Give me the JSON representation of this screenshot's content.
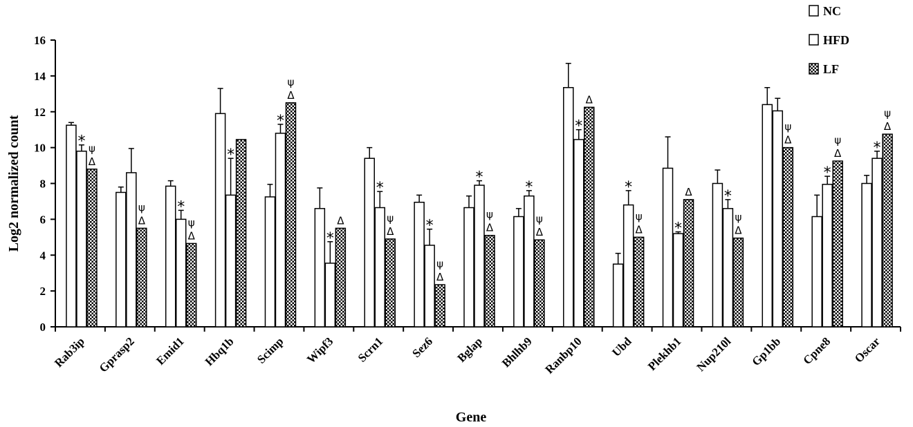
{
  "chart_data": {
    "type": "bar",
    "xlabel": "Gene",
    "ylabel": "Log2 normalized count",
    "ylim": [
      0,
      16
    ],
    "yticks": [
      "0",
      "2",
      "4",
      "6",
      "8",
      "10",
      "12",
      "14",
      "16"
    ],
    "legend_position": "top-right",
    "grid": false,
    "categories": [
      "Rab3ip",
      "Gprasp2",
      "Emid1",
      "Hbq1b",
      "Scimp",
      "Wipf3",
      "Scrn1",
      "Sez6",
      "Bglap",
      "Bhlhb9",
      "Ranbp10",
      "Ubd",
      "Plekhb1",
      "Nup210l",
      "Gp1bb",
      "Cpne8",
      "Oscar"
    ],
    "series": [
      {
        "name": "NC",
        "pattern": "white",
        "values": [
          11.25,
          7.5,
          7.85,
          11.9,
          7.25,
          6.6,
          9.4,
          6.95,
          6.65,
          6.15,
          13.35,
          3.5,
          8.85,
          8.0,
          12.4,
          6.15,
          8.0
        ],
        "errors": [
          0.15,
          0.3,
          0.3,
          1.4,
          0.7,
          1.15,
          0.6,
          0.4,
          0.65,
          0.45,
          1.35,
          0.6,
          1.75,
          0.75,
          0.95,
          1.2,
          0.45
        ]
      },
      {
        "name": "HFD",
        "pattern": "white",
        "values": [
          9.8,
          8.6,
          6.0,
          7.35,
          10.8,
          3.55,
          6.65,
          4.55,
          7.9,
          7.3,
          10.45,
          6.8,
          5.2,
          6.6,
          12.05,
          7.95,
          9.4
        ],
        "errors": [
          0.35,
          1.35,
          0.5,
          2.05,
          0.5,
          1.2,
          0.9,
          0.9,
          0.25,
          0.3,
          0.55,
          0.8,
          0.1,
          0.5,
          0.7,
          0.45,
          0.4
        ]
      },
      {
        "name": "LF",
        "pattern": "checkered",
        "values": [
          8.8,
          5.5,
          4.65,
          10.45,
          12.5,
          5.5,
          4.9,
          2.35,
          5.1,
          4.85,
          12.25,
          5.0,
          7.1,
          4.95,
          10.0,
          9.25,
          10.75
        ]
      }
    ],
    "annotations": [
      {
        "category": "Rab3ip",
        "series": "HFD",
        "symbols": [
          "*"
        ]
      },
      {
        "category": "Rab3ip",
        "series": "LF",
        "symbols": [
          "Δ",
          "ψ"
        ]
      },
      {
        "category": "Gprasp2",
        "series": "LF",
        "symbols": [
          "Δ",
          "ψ"
        ]
      },
      {
        "category": "Emid1",
        "series": "HFD",
        "symbols": [
          "*"
        ]
      },
      {
        "category": "Emid1",
        "series": "LF",
        "symbols": [
          "Δ",
          "ψ"
        ]
      },
      {
        "category": "Hbq1b",
        "series": "HFD",
        "symbols": [
          "*"
        ]
      },
      {
        "category": "Scimp",
        "series": "HFD",
        "symbols": [
          "*"
        ]
      },
      {
        "category": "Scimp",
        "series": "LF",
        "symbols": [
          "Δ",
          "ψ"
        ]
      },
      {
        "category": "Wipf3",
        "series": "HFD",
        "symbols": [
          "*"
        ]
      },
      {
        "category": "Wipf3",
        "series": "LF",
        "symbols": [
          "Δ"
        ]
      },
      {
        "category": "Scrn1",
        "series": "HFD",
        "symbols": [
          "*"
        ]
      },
      {
        "category": "Scrn1",
        "series": "LF",
        "symbols": [
          "Δ",
          "ψ"
        ]
      },
      {
        "category": "Sez6",
        "series": "HFD",
        "symbols": [
          "*"
        ]
      },
      {
        "category": "Sez6",
        "series": "LF",
        "symbols": [
          "Δ",
          "ψ"
        ]
      },
      {
        "category": "Bglap",
        "series": "HFD",
        "symbols": [
          "*"
        ]
      },
      {
        "category": "Bglap",
        "series": "LF",
        "symbols": [
          "Δ",
          "ψ"
        ]
      },
      {
        "category": "Bhlhb9",
        "series": "HFD",
        "symbols": [
          "*"
        ]
      },
      {
        "category": "Bhlhb9",
        "series": "LF",
        "symbols": [
          "Δ",
          "ψ"
        ]
      },
      {
        "category": "Ranbp10",
        "series": "HFD",
        "symbols": [
          "*"
        ]
      },
      {
        "category": "Ranbp10",
        "series": "LF",
        "symbols": [
          "Δ"
        ]
      },
      {
        "category": "Ubd",
        "series": "HFD",
        "symbols": [
          "*"
        ]
      },
      {
        "category": "Ubd",
        "series": "LF",
        "symbols": [
          "Δ",
          "ψ"
        ]
      },
      {
        "category": "Plekhb1",
        "series": "HFD",
        "symbols": [
          "*"
        ]
      },
      {
        "category": "Plekhb1",
        "series": "LF",
        "symbols": [
          "Δ"
        ]
      },
      {
        "category": "Nup210l",
        "series": "HFD",
        "symbols": [
          "*"
        ]
      },
      {
        "category": "Nup210l",
        "series": "LF",
        "symbols": [
          "Δ",
          "ψ"
        ]
      },
      {
        "category": "Gp1bb",
        "series": "LF",
        "symbols": [
          "Δ",
          "ψ"
        ]
      },
      {
        "category": "Cpne8",
        "series": "HFD",
        "symbols": [
          "*"
        ]
      },
      {
        "category": "Cpne8",
        "series": "LF",
        "symbols": [
          "Δ",
          "ψ"
        ]
      },
      {
        "category": "Oscar",
        "series": "HFD",
        "symbols": [
          "*"
        ]
      },
      {
        "category": "Oscar",
        "series": "LF",
        "symbols": [
          "Δ",
          "ψ"
        ]
      }
    ]
  }
}
